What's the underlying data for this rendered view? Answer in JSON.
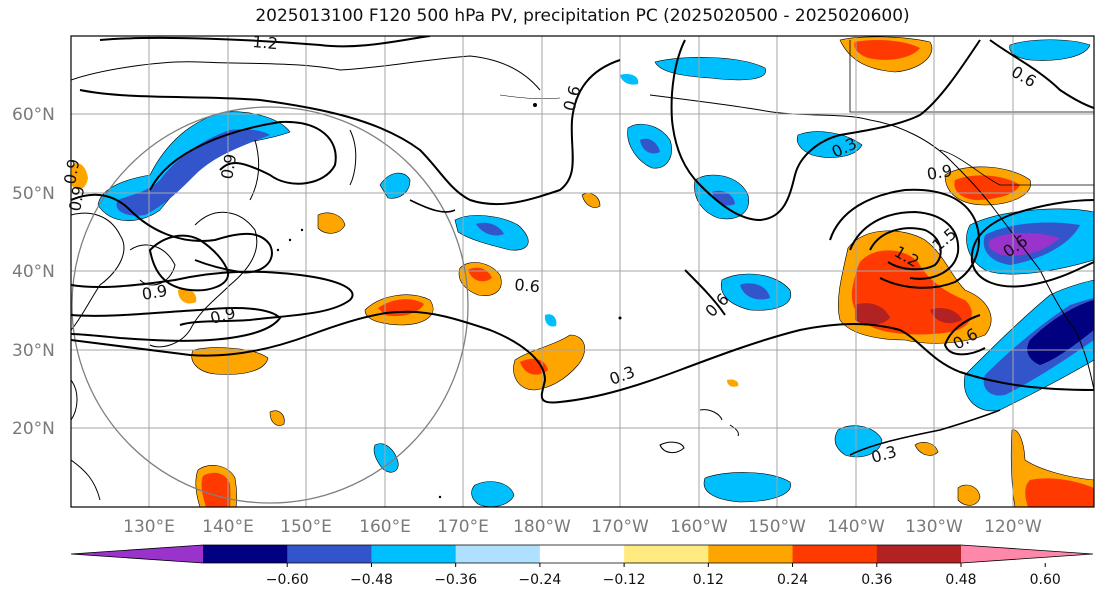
{
  "title": "2025013100 F120 500 hPa PV, precipitation PC (2025020500 - 2025020600)",
  "lat_labels": [
    "60°N",
    "50°N",
    "40°N",
    "30°N",
    "20°N"
  ],
  "lon_labels": [
    "130°E",
    "140°E",
    "150°E",
    "160°E",
    "170°E",
    "180°W",
    "170°W",
    "160°W",
    "150°W",
    "140°W",
    "130°W",
    "120°W"
  ],
  "contour_labels": [
    "1.2",
    "0.6",
    "0.9",
    "0.9",
    "0.9",
    "0.9",
    "0.9",
    "0.6",
    "0.6",
    "0.3",
    "0.3",
    "0.3",
    "0.9",
    "1.2",
    "1.5",
    "0.6",
    "0.6",
    "0.6"
  ],
  "colorbar": {
    "tick_labels": [
      "−0.60",
      "−0.48",
      "−0.36",
      "−0.24",
      "−0.12",
      "0.12",
      "0.24",
      "0.36",
      "0.48",
      "0.60"
    ],
    "colors": [
      "#9933cc",
      "#000080",
      "#3355cc",
      "#00bfff",
      "#b0e0ff",
      "#ffffff",
      "#ffeb80",
      "#ffa500",
      "#ff3a00",
      "#b22222",
      "#ff88aa"
    ]
  },
  "palette": {
    "pos1": "#ffeb80",
    "pos2": "#ffa500",
    "pos3": "#ff3a00",
    "pos4": "#b22222",
    "neg1": "#b0e0ff",
    "neg2": "#00bfff",
    "neg3": "#3355cc",
    "neg4": "#000080",
    "neg5": "#9933cc"
  }
}
